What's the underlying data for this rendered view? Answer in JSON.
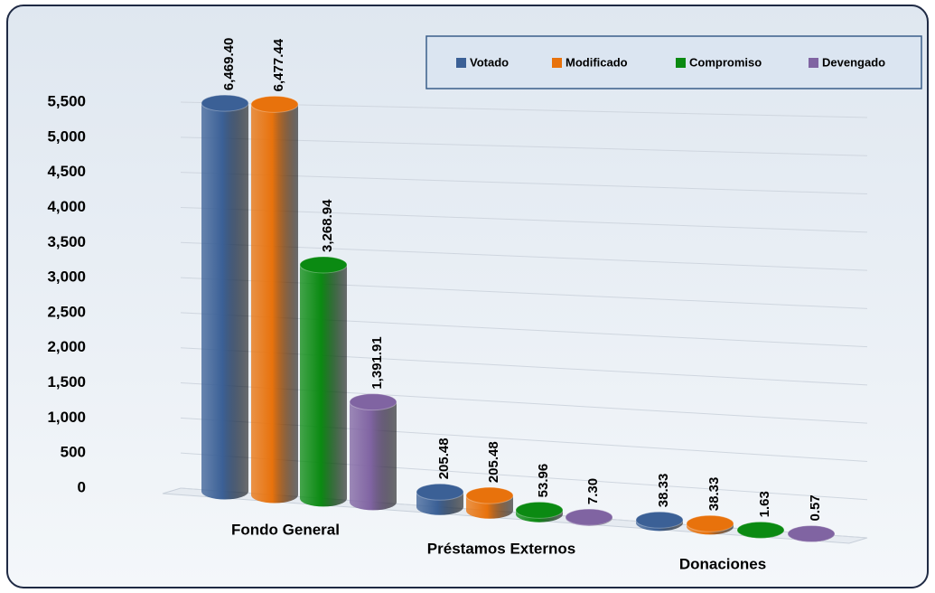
{
  "chart_data": {
    "type": "bar",
    "categories": [
      "Fondo General",
      "Préstamos Externos",
      "Donaciones"
    ],
    "series": [
      {
        "name": "Votado",
        "color": "#3b6096",
        "values": [
          6469.4,
          205.48,
          38.33
        ],
        "value_labels": [
          "6,469.40",
          "205.48",
          "38.33"
        ]
      },
      {
        "name": "Modificado",
        "color": "#e8720c",
        "values": [
          6477.44,
          205.48,
          38.33
        ],
        "value_labels": [
          "6,477.44",
          "205.48",
          "38.33"
        ]
      },
      {
        "name": "Compromiso",
        "color": "#0b8a12",
        "values": [
          3268.94,
          53.96,
          1.63
        ],
        "value_labels": [
          "3,268.94",
          "53.96",
          "1.63"
        ]
      },
      {
        "name": "Devengado",
        "color": "#8064a2",
        "values": [
          1391.91,
          7.3,
          0.57
        ],
        "value_labels": [
          "1,391.91",
          "7.30",
          "0.57"
        ]
      }
    ],
    "ylim": [
      0,
      5500
    ],
    "yticks": [
      0,
      500,
      {
        "value": 1000,
        "label": "1,000"
      },
      {
        "value": 1500,
        "label": "1,500"
      },
      {
        "value": 2000,
        "label": "2,000"
      },
      {
        "value": 2500,
        "label": "2,500"
      },
      {
        "value": 3000,
        "label": "3,000"
      },
      {
        "value": 3500,
        "label": "3,500"
      },
      {
        "value": 4000,
        "label": "4,000"
      },
      {
        "value": 4500,
        "label": "4,500"
      },
      {
        "value": 5000,
        "label": "5,000"
      },
      {
        "value": 5500,
        "label": "5,500"
      }
    ],
    "grid": true,
    "legend": "top-right"
  }
}
